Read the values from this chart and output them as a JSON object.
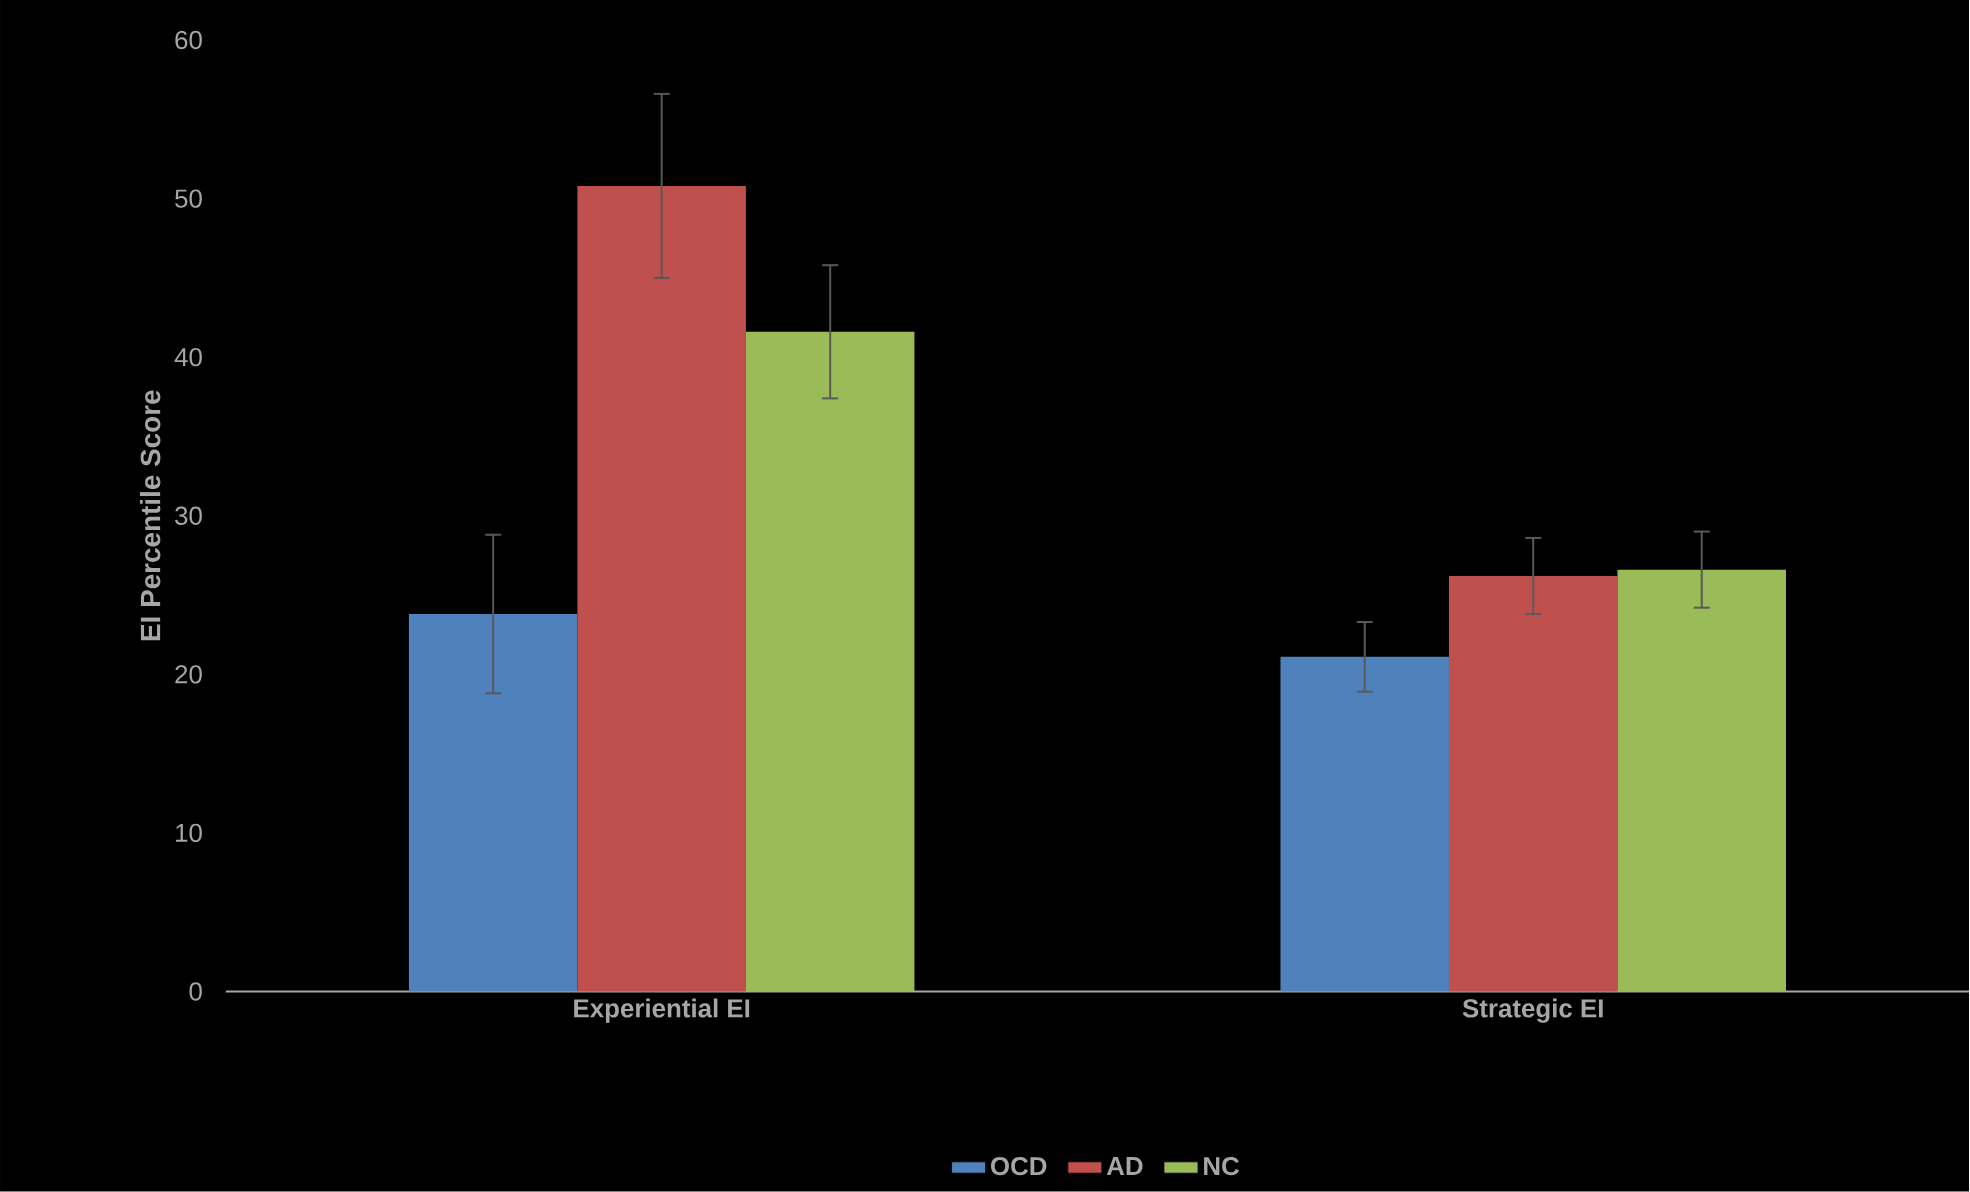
{
  "chart_data": {
    "type": "bar",
    "ylabel": "EI Percentile Score",
    "categories": [
      "Experiential EI",
      "Strategic EI"
    ],
    "series": [
      {
        "name": "OCD",
        "color": "#4f81bd",
        "values": [
          23.8,
          21.1
        ],
        "errors": [
          5,
          2.2
        ]
      },
      {
        "name": "AD",
        "color": "#c0504d",
        "values": [
          50.8,
          26.2
        ],
        "errors": [
          5.8,
          2.4
        ]
      },
      {
        "name": "NC",
        "color": "#9bbb59",
        "values": [
          41.6,
          26.6
        ],
        "errors": [
          4.2,
          2.4
        ]
      }
    ],
    "ylim": [
      0,
      60
    ],
    "yticks": [
      0,
      10,
      20,
      30,
      40,
      50,
      60
    ],
    "legend": "bottom"
  }
}
